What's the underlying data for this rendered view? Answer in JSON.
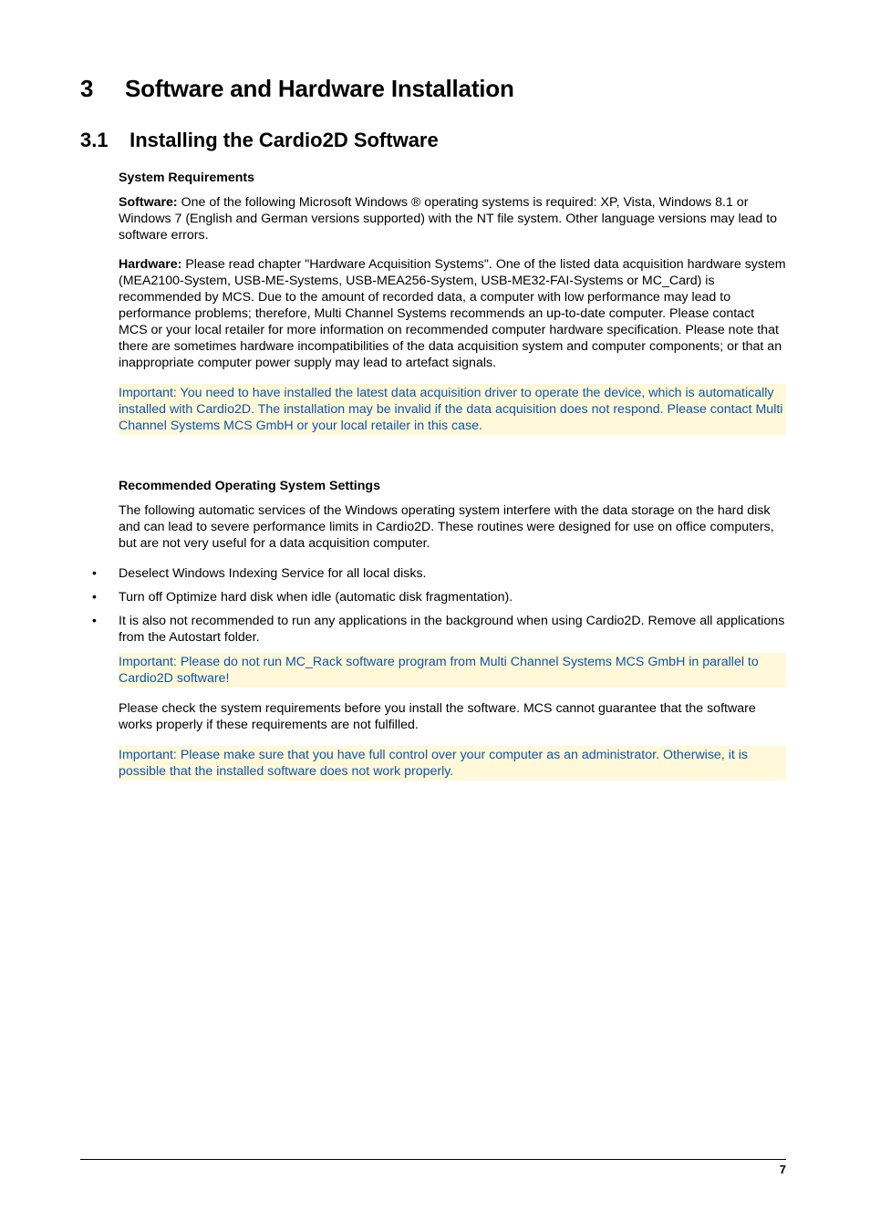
{
  "chapter": {
    "number": "3",
    "title": "Software and Hardware Installation"
  },
  "section": {
    "number": "3.1",
    "title": "Installing the Cardio2D Software"
  },
  "sysreq": {
    "heading": "System Requirements",
    "software_label": "Software:",
    "software_text": " One of the following Microsoft Windows ® operating systems is required: XP, Vista, Windows 8.1 or Windows 7 (English and German versions supported) with the NT file system. Other language versions may lead to software errors.",
    "hardware_label": "Hardware:",
    "hardware_text": " Please read chapter \"Hardware Acquisition Systems\". One of the listed data acquisition hardware system (MEA2100-System, USB-ME-Systems, USB-MEA256-System, USB-ME32-FAI-Systems or MC_Card) is recommended by MCS. Due to the amount of recorded data, a computer with low performance may lead to performance problems; therefore, Multi Channel Systems recommends an up-to-date computer. Please contact MCS or your local retailer for more information on recommended computer hardware specification. Please note that there are sometimes hardware incompatibilities of the data acquisition system and computer components; or that an inappropriate computer power supply may lead to artefact signals.",
    "note1": "Important: You need to have installed the latest data acquisition driver to operate the device, which is automatically installed with Cardio2D. The installation may be invalid if the data acquisition does not respond. Please contact Multi Channel Systems MCS GmbH or your local retailer in this case."
  },
  "recos": {
    "heading": "Recommended Operating System Settings",
    "intro": "The following automatic services of the Windows operating system interfere with the data storage on the hard disk and can lead to severe performance limits in Cardio2D. These routines were designed for use on office computers, but are not very useful for a data acquisition computer.",
    "bullets": [
      "Deselect Windows Indexing Service for all local disks.",
      "Turn off Optimize hard disk when idle (automatic disk fragmentation).",
      "It is also not recommended to run any applications in the background when using Cardio2D. Remove all applications from the Autostart folder."
    ],
    "note2": "Important: Please do not run MC_Rack software program from Multi Channel Systems MCS GmbH in parallel to Cardio2D software!",
    "check": "Please check the system requirements before you install the software. MCS cannot guarantee that the software works properly if these requirements are not fulfilled.",
    "note3": "Important: Please make sure that you have full control over your computer as an administrator. Otherwise, it is possible that the installed software does not work properly."
  },
  "pagenum": "7"
}
